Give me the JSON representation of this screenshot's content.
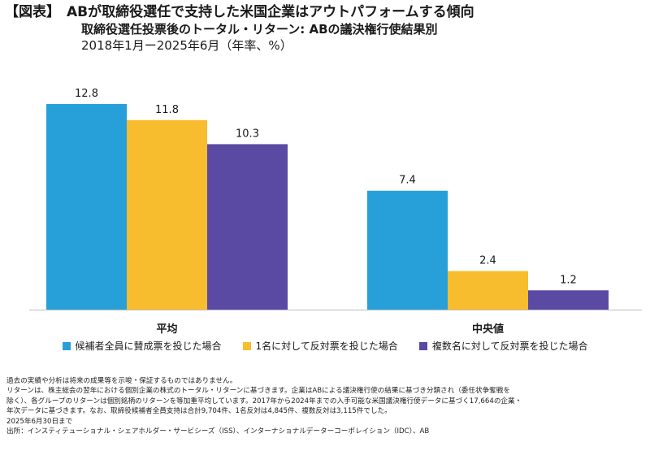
{
  "title": {
    "tag": "【図表】",
    "line1": "ABが取締役選任で支持した米国企業はアウトパフォームする傾向",
    "line2": "取締役選任投票後のトータル・リターン: ABの議決権行使結果別",
    "line3": "2018年1月ー2025年6月（年率、%）"
  },
  "chart_data": {
    "type": "bar",
    "categories": [
      "平均",
      "中央値"
    ],
    "series": [
      {
        "name": "候補者全員に賛成票を投じた場合",
        "color": "#27a0d9",
        "values": [
          12.8,
          7.4
        ],
        "labels": [
          "12.8",
          "7.4"
        ]
      },
      {
        "name": "1名に対して反対票を投じた場合",
        "color": "#f7bd2e",
        "values": [
          11.8,
          2.4
        ],
        "labels": [
          "11.8",
          "2.4"
        ]
      },
      {
        "name": "複数名に対して反対票を投じた場合",
        "color": "#5b4aa3",
        "values": [
          10.3,
          1.2
        ],
        "labels": [
          "10.3",
          "1.2"
        ]
      }
    ],
    "ylim": [
      0,
      12.8
    ],
    "xlabel": "",
    "ylabel": "",
    "grid": false,
    "legend_position": "bottom"
  },
  "notes": [
    "過去の実績や分析は将来の成果等を示唆・保証するものではありません。",
    "リターンは、株主総会の翌年における個別企業の株式のトータル・リターンに基づきます。企業はABによる議決権行使の結果に基づき分類され（委任状争奪戦を",
    "除く）、各グループのリターンは個別銘柄のリターンを等加重平均しています。2017年から2024年までの入手可能な米国議決権行使データに基づく17,664の企業・",
    "年次データに基づきます。なお、取締役候補者全員支持は合計9,704件、1名反対は4,845件、複数反対は3,115件でした。",
    "2025年6月30日まで",
    "出所：インスティテューショナル・シェアホルダー・サービシーズ（ISS）、インターナショナルデーターコーポレイション（IDC）、AB"
  ]
}
